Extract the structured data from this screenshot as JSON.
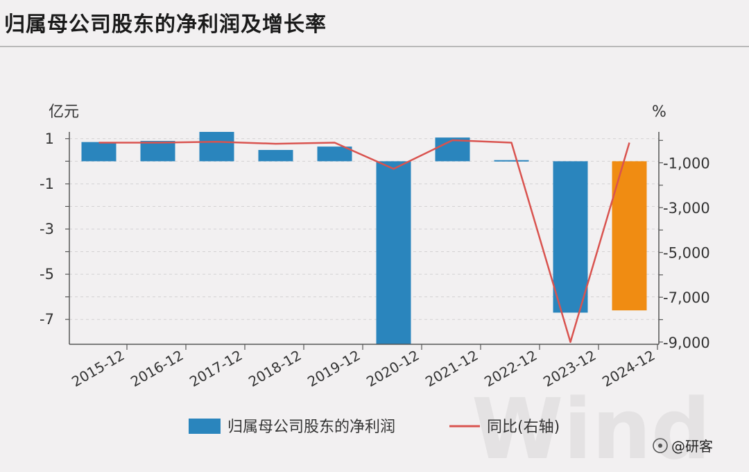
{
  "title": "归属母公司股东的净利润及增长率",
  "watermark": {
    "logo_text": "Wind",
    "credit": "@研客"
  },
  "chart_data": {
    "type": "bar",
    "categories": [
      "2015-12",
      "2016-12",
      "2017-12",
      "2018-12",
      "2019-12",
      "2020-12",
      "2021-12",
      "2022-12",
      "2023-12",
      "2024-12"
    ],
    "series": [
      {
        "name": "归属母公司股东的净利润",
        "type": "bar",
        "axis": "left",
        "values": [
          0.85,
          0.9,
          1.3,
          0.5,
          0.65,
          -8.2,
          1.05,
          0.05,
          -6.7,
          -6.6
        ],
        "colors": [
          "#2a85bd",
          "#2a85bd",
          "#2a85bd",
          "#2a85bd",
          "#2a85bd",
          "#2a85bd",
          "#2a85bd",
          "#2a85bd",
          "#2a85bd",
          "#f08c12"
        ]
      },
      {
        "name": "同比(右轴)",
        "type": "line",
        "axis": "right",
        "color": "#d9534f",
        "values": [
          -100,
          -100,
          -60,
          -150,
          -100,
          -1270,
          10,
          -100,
          -9000,
          -100
        ]
      }
    ],
    "left_axis": {
      "unit": "亿元",
      "ticks": [
        1,
        -1,
        -3,
        -5,
        -7
      ],
      "tick_labels": [
        "1",
        "-1",
        "-3",
        "-5",
        "-7"
      ],
      "range": [
        -8.1,
        1.3
      ]
    },
    "right_axis": {
      "unit": "%",
      "ticks": [
        -1000,
        -3000,
        -5000,
        -7000,
        -9000
      ],
      "tick_labels": [
        "-1,000",
        "-3,000",
        "-5,000",
        "-7,000",
        "-9,000"
      ],
      "range": [
        -9100,
        380
      ]
    },
    "grid": true,
    "legend_position": "bottom",
    "colors": {
      "bar": "#2a85bd",
      "bar_highlight": "#f08c12",
      "line": "#d9534f"
    }
  }
}
